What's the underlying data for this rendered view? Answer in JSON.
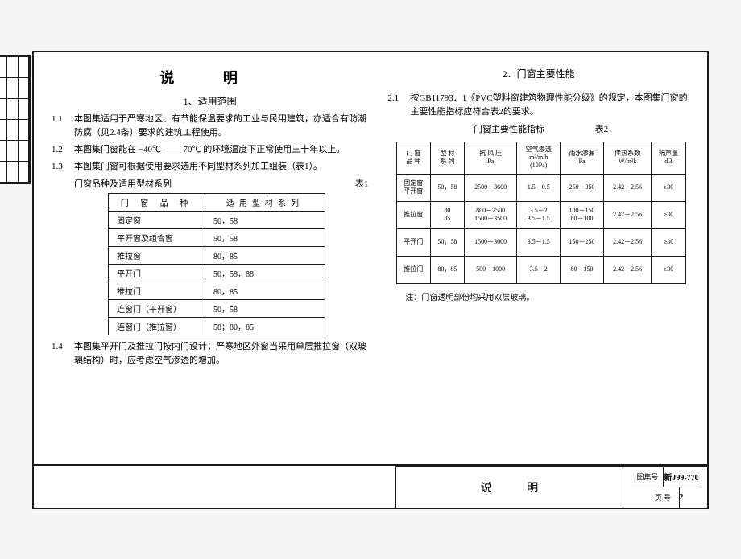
{
  "colors": {
    "ink": "#1a1a1a",
    "paper": "#ffffff",
    "bg": "#f5f5f5"
  },
  "title": "说    明",
  "section1_title": "1、适用范围",
  "p11_num": "1.1",
  "p11": "本图集适用于严寒地区、有节能保温要求的工业与民用建筑，亦适合有防潮防腐（见2.4条）要求的建筑工程使用。",
  "p12_num": "1.2",
  "p12": "本图集门窗能在 −40℃ —— 70℃ 的环境温度下正常使用三十年以上。",
  "p13_num": "1.3",
  "p13": "本图集门窗可根据使用要求选用不同型材系列加工组装（表1）。",
  "t1_caption_left": "门窗品种及适用型材系列",
  "t1_caption_right": "表1",
  "t1_h1": "门 窗 品 种",
  "t1_h2": "适用型材系列",
  "t1": [
    [
      "固定窗",
      "50，58"
    ],
    [
      "平开窗及组合窗",
      "50，58"
    ],
    [
      "推拉窗",
      "80，85"
    ],
    [
      "平开门",
      "50，58，88"
    ],
    [
      "推拉门",
      "80，85"
    ],
    [
      "连窗门（平开窗）",
      "50，58"
    ],
    [
      "连窗门（推拉窗）",
      "58；80，85"
    ]
  ],
  "p14_num": "1.4",
  "p14": "本图集平开门及推拉门按内门设计；严寒地区外窗当采用单层推拉窗（双玻璃结构）时，应考虑空气渗透的增加。",
  "section2_title": "2．门窗主要性能",
  "p21_num": "2.1",
  "p21": "按GB11793．1《PVC塑料窗建筑物理性能分级》的规定，本图集门窗的主要性能指标应符合表2的要求。",
  "t2_caption_left": "门窗主要性能指标",
  "t2_caption_right": "表2",
  "t2_head": [
    "门 窗\n品 种",
    "型 材\n系 列",
    "抗 风 压\nPa",
    "空气渗透\nm³/m.h\n(10Pa)",
    "雨水渗漏\nPa",
    "传热系数\nW/m²k",
    "隔声量\ndB"
  ],
  "t2": [
    [
      "固定窗\n平开窗",
      "50，58",
      "2500－3600",
      "1.5－0.5",
      "250－350",
      "2.42－2.56",
      "≥30"
    ],
    [
      "推拉窗",
      "80\n85",
      "800－2500\n1500－3500",
      "3.5－2\n3.5－1.5",
      "100－150\n80－100",
      "2.42－2.56",
      "≥30"
    ],
    [
      "平开门",
      "50，58",
      "1500－3000",
      "3.5－1.5",
      "150－250",
      "2.42－2.56",
      "≥30"
    ],
    [
      "推拉门",
      "80，85",
      "500－1000",
      "3.5－2",
      "80－150",
      "2.42－2.56",
      "≥30"
    ]
  ],
  "t2_note": "注：门窗透明部份均采用双层玻璃。",
  "tb_name": "说    明",
  "tb_set_lbl": "图集号",
  "tb_set_val": "新J99-770",
  "tb_page_lbl": "页  号",
  "tb_page_val": "2"
}
